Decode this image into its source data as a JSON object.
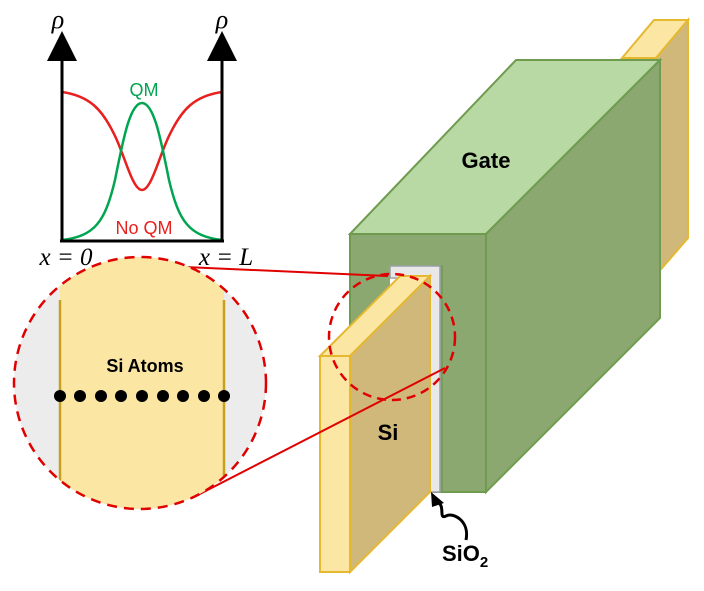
{
  "plot": {
    "y_axis_symbol": "ρ",
    "curve_qm_label": "QM",
    "curve_noqm_label": "No QM",
    "x_left_label": "x = 0",
    "x_right_label": "x = L"
  },
  "labels": {
    "gate": "Gate",
    "silicon": "Si",
    "oxide_main": "SiO",
    "oxide_sub": "2",
    "zoom_atoms": "Si Atoms"
  },
  "colors": {
    "qm_curve": "#00a550",
    "noqm_curve": "#e8201e",
    "gate_front": "#8aa870",
    "gate_top": "#b8d8a4",
    "silicon_front": "#d0b87a",
    "silicon_face": "#fbe6a4",
    "oxide": "#e8e8e8",
    "zoom_circle": "#e00000"
  }
}
